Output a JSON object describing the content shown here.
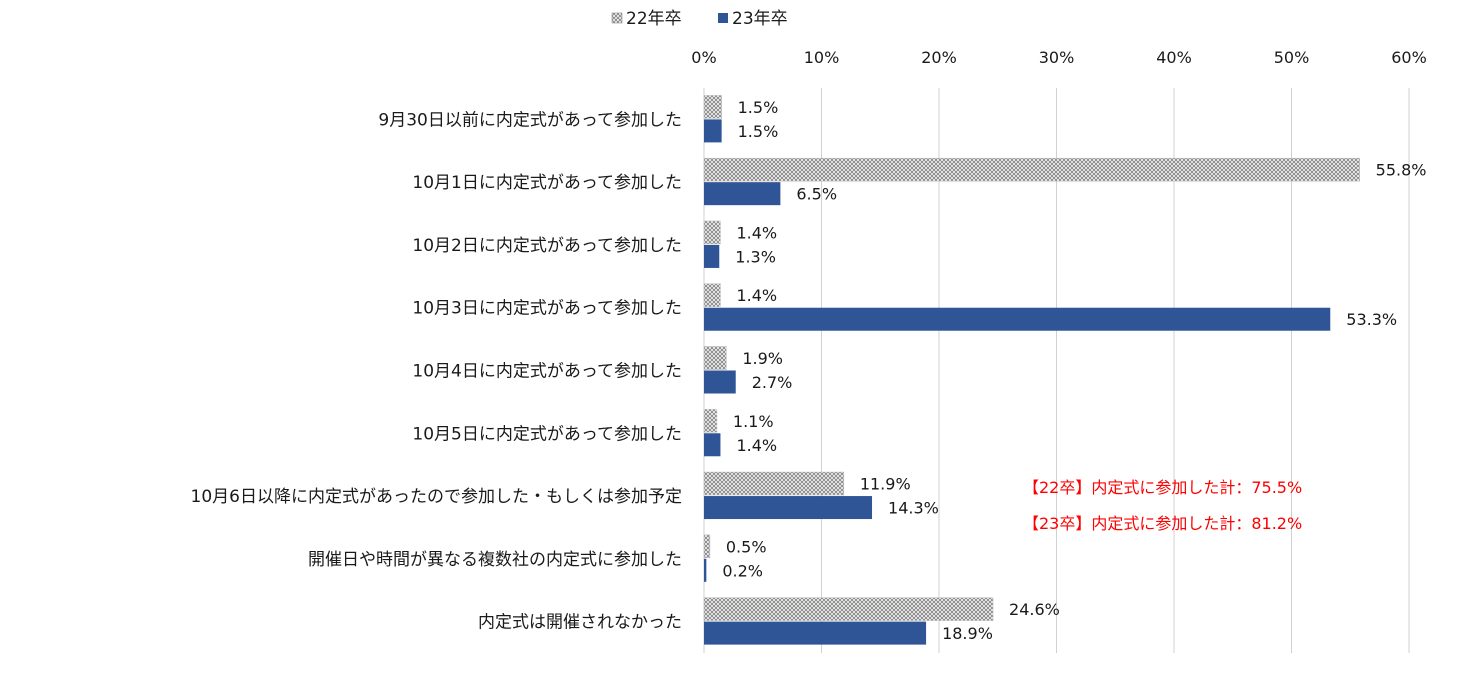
{
  "chart_data": {
    "type": "bar",
    "orientation": "horizontal",
    "title": "",
    "xlabel": "",
    "ylabel": "",
    "xlim": [
      0,
      60
    ],
    "x_ticks": [
      0,
      10,
      20,
      30,
      40,
      50,
      60
    ],
    "x_tick_labels": [
      "0%",
      "10%",
      "20%",
      "30%",
      "40%",
      "50%",
      "60%"
    ],
    "x_axis_position": "top",
    "grid": true,
    "legend_position": "top",
    "categories": [
      "9月30日以前に内定式があって参加した",
      "10月1日に内定式があって参加した",
      "10月2日に内定式があって参加した",
      "10月3日に内定式があって参加した",
      "10月4日に内定式があって参加した",
      "10月5日に内定式があって参加した",
      "10月6日以降に内定式があったので参加した・もしくは参加予定",
      "開催日や時間が異なる複数社の内定式に参加した",
      "内定式は開催されなかった"
    ],
    "series": [
      {
        "name": "22年卒",
        "color": "#9e9e9e",
        "pattern": "crosshatch",
        "values": [
          1.5,
          55.8,
          1.4,
          1.4,
          1.9,
          1.1,
          11.9,
          0.5,
          24.6
        ],
        "labels": [
          "1.5%",
          "55.8%",
          "1.4%",
          "1.4%",
          "1.9%",
          "1.1%",
          "11.9%",
          "0.5%",
          "24.6%"
        ]
      },
      {
        "name": "23年卒",
        "color": "#2f5597",
        "pattern": "solid",
        "values": [
          1.5,
          6.5,
          1.3,
          53.3,
          2.7,
          1.4,
          14.3,
          0.2,
          18.9
        ],
        "labels": [
          "1.5%",
          "6.5%",
          "1.3%",
          "53.3%",
          "2.7%",
          "1.4%",
          "14.3%",
          "0.2%",
          "18.9%"
        ]
      }
    ],
    "annotations": [
      {
        "text": "【22卒】内定式に参加した計：75.5%",
        "color": "#ff0000"
      },
      {
        "text": "【23卒】内定式に参加した計：81.2%",
        "color": "#ff0000"
      }
    ]
  }
}
